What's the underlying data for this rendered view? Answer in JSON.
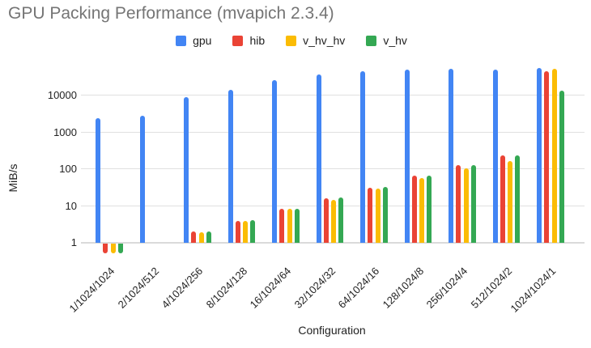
{
  "chart_data": {
    "type": "bar",
    "title": "GPU Packing Performance (mvapich 2.3.4)",
    "xlabel": "Configuration",
    "ylabel": "MiB/s",
    "y_scale": "log",
    "y_ticks": [
      1,
      10,
      100,
      1000,
      10000
    ],
    "ylim": [
      0.5,
      100000
    ],
    "grid": true,
    "legend_position": "top",
    "categories": [
      "1/1024/1024",
      "2/1024/512",
      "4/1024/256",
      "8/1024/128",
      "16/1024/64",
      "32/1024/32",
      "64/1024/16",
      "128/1024/8",
      "256/1024/4",
      "512/1024/2",
      "1024/1024/1"
    ],
    "series": [
      {
        "name": "gpu",
        "color": "#4285F4",
        "values": [
          2300,
          2700,
          8600,
          13500,
          25000,
          36000,
          44000,
          47000,
          51000,
          48000,
          54000
        ]
      },
      {
        "name": "hib",
        "color": "#EA4335",
        "values": [
          0.5,
          null,
          1.9,
          3.8,
          7.8,
          15.5,
          30,
          62,
          123,
          230,
          43000
        ]
      },
      {
        "name": "v_hv_hv",
        "color": "#FBBC04",
        "values": [
          0.5,
          null,
          1.85,
          3.75,
          7.9,
          13.7,
          28,
          55,
          100,
          160,
          51000
        ]
      },
      {
        "name": "v_hv",
        "color": "#34A853",
        "values": [
          0.5,
          null,
          1.9,
          3.85,
          8.0,
          16,
          31,
          62,
          122,
          220,
          13000
        ]
      }
    ]
  },
  "colors": {
    "title_text": "#757575",
    "axis_text": "#222222",
    "gridline": "#e0e0e0"
  }
}
